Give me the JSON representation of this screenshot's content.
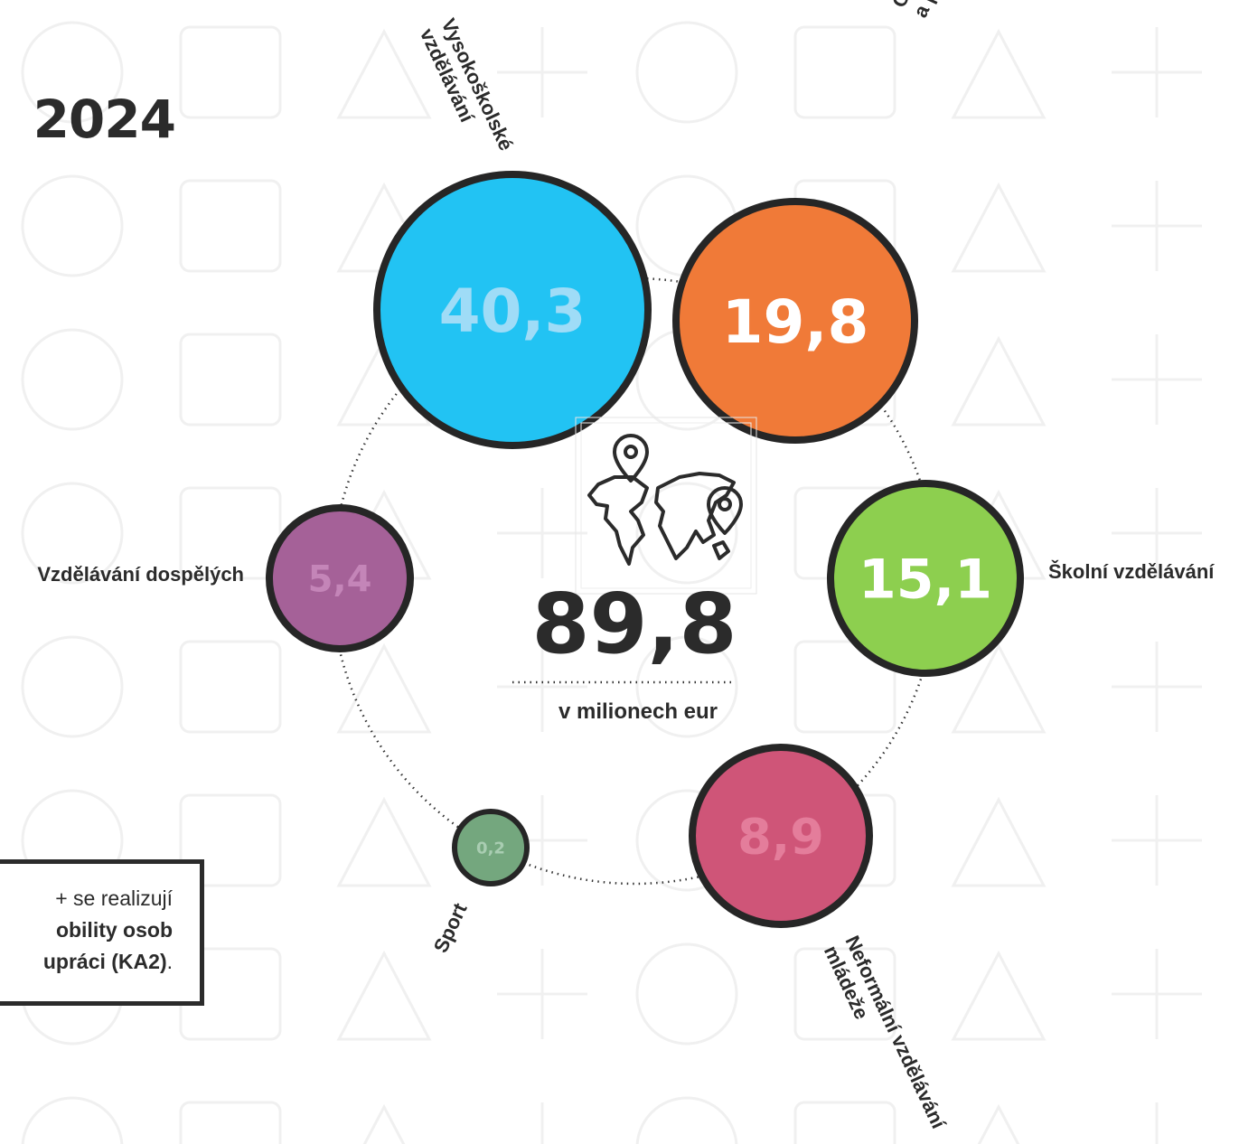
{
  "title": {
    "text": "2024"
  },
  "info_box": {
    "line1": "+ se realizují",
    "line2": "obility osob",
    "line3_bold": "upráci (KA2)",
    "line3_rest": "."
  },
  "center": {
    "total": "89,8",
    "unit": "v milionech eur",
    "icon": "world-map-pins-icon"
  },
  "chart_data": {
    "type": "bubble",
    "title": "",
    "total": 89.8,
    "unit": "v milionech eur",
    "series": [
      {
        "name": "Vysokoškolské vzdělávání",
        "value": 40.3,
        "label": "40,3",
        "color": "#22c3f3",
        "text_color": "#9fdcf7"
      },
      {
        "name": "Odborné vzdělávání a příprava",
        "value": 19.8,
        "label": "19,8",
        "color": "#f07a38",
        "text_color": "#ffffff"
      },
      {
        "name": "Školní vzdělávání",
        "value": 15.1,
        "label": "15,1",
        "color": "#8dcf4f",
        "text_color": "#ffffff"
      },
      {
        "name": "Neformální vzdělávání mládeže",
        "value": 8.9,
        "label": "8,9",
        "color": "#cf5578",
        "text_color": "#e47d9b"
      },
      {
        "name": "Sport",
        "value": 0.2,
        "label": "0,2",
        "color": "#74a77e",
        "text_color": "#a9cdb2"
      },
      {
        "name": "Vzdělávání dospělých",
        "value": 5.4,
        "label": "5,4",
        "color": "#a56198",
        "text_color": "#c485b8"
      }
    ]
  }
}
